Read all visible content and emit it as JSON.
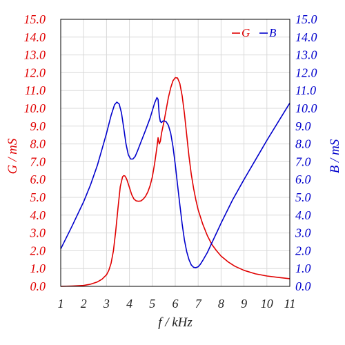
{
  "chart_data": {
    "type": "line",
    "xlabel": "f / kHz",
    "ylabel_left": "G / mS",
    "ylabel_right": "B / mS",
    "xlim": [
      1,
      11
    ],
    "ylim": [
      0,
      15
    ],
    "grid": true,
    "legend_position": "top-right",
    "x_ticks": [
      "1",
      "2",
      "3",
      "4",
      "5",
      "6",
      "7",
      "8",
      "9",
      "10",
      "11"
    ],
    "y_ticks": [
      "0.0",
      "1.0",
      "2.0",
      "3.0",
      "4.0",
      "5.0",
      "6.0",
      "7.0",
      "8.0",
      "9.0",
      "10.0",
      "11.0",
      "12.0",
      "13.0",
      "14.0",
      "15.0"
    ],
    "colors": {
      "G": "#e00000",
      "B": "#0000cc",
      "grid": "#d9d9d9",
      "frame": "#000000"
    },
    "series": [
      {
        "name": "G",
        "axis": "left",
        "x": [
          1,
          1.5,
          2,
          2.3,
          2.6,
          2.8,
          3,
          3.1,
          3.2,
          3.3,
          3.4,
          3.5,
          3.6,
          3.7,
          3.75,
          3.8,
          3.85,
          3.9,
          4.0,
          4.1,
          4.2,
          4.3,
          4.4,
          4.5,
          4.6,
          4.7,
          4.8,
          4.9,
          5.0,
          5.1,
          5.2,
          5.25,
          5.3,
          5.35,
          5.4,
          5.5,
          5.6,
          5.7,
          5.8,
          5.9,
          6.0,
          6.1,
          6.2,
          6.3,
          6.4,
          6.5,
          6.6,
          6.7,
          6.8,
          6.9,
          7.0,
          7.2,
          7.4,
          7.6,
          7.8,
          8.0,
          8.3,
          8.6,
          9.0,
          9.5,
          10.0,
          10.5,
          11.0
        ],
        "y": [
          0.0,
          0.02,
          0.05,
          0.12,
          0.25,
          0.4,
          0.65,
          0.9,
          1.3,
          2.0,
          3.1,
          4.4,
          5.6,
          6.15,
          6.22,
          6.2,
          6.1,
          5.95,
          5.55,
          5.15,
          4.9,
          4.8,
          4.78,
          4.8,
          4.9,
          5.05,
          5.3,
          5.65,
          6.15,
          6.9,
          7.8,
          8.35,
          8.0,
          8.15,
          8.6,
          9.2,
          9.9,
          10.6,
          11.15,
          11.55,
          11.72,
          11.7,
          11.4,
          10.7,
          9.7,
          8.5,
          7.3,
          6.3,
          5.5,
          4.85,
          4.3,
          3.5,
          2.85,
          2.35,
          2.0,
          1.7,
          1.38,
          1.13,
          0.9,
          0.7,
          0.58,
          0.5,
          0.43
        ]
      },
      {
        "name": "B",
        "axis": "right",
        "x": [
          1,
          1.5,
          2,
          2.3,
          2.6,
          2.8,
          3.0,
          3.2,
          3.35,
          3.45,
          3.55,
          3.65,
          3.75,
          3.85,
          3.95,
          4.05,
          4.15,
          4.25,
          4.35,
          4.5,
          4.7,
          4.9,
          5.1,
          5.2,
          5.25,
          5.3,
          5.35,
          5.4,
          5.45,
          5.5,
          5.6,
          5.7,
          5.8,
          5.9,
          6.0,
          6.1,
          6.2,
          6.3,
          6.4,
          6.5,
          6.6,
          6.7,
          6.8,
          6.9,
          7.0,
          7.1,
          7.2,
          7.4,
          7.6,
          7.8,
          8.0,
          8.5,
          9.0,
          9.5,
          10.0,
          10.5,
          11.0
        ],
        "y": [
          2.1,
          3.4,
          4.75,
          5.7,
          6.8,
          7.7,
          8.6,
          9.6,
          10.2,
          10.35,
          10.25,
          9.75,
          8.9,
          8.0,
          7.4,
          7.15,
          7.15,
          7.3,
          7.6,
          8.1,
          8.75,
          9.45,
          10.3,
          10.6,
          10.5,
          9.6,
          9.25,
          9.2,
          9.28,
          9.3,
          9.25,
          9.05,
          8.6,
          7.85,
          6.85,
          5.7,
          4.6,
          3.5,
          2.6,
          1.95,
          1.5,
          1.2,
          1.07,
          1.05,
          1.1,
          1.25,
          1.45,
          1.9,
          2.45,
          3.0,
          3.55,
          4.85,
          6.0,
          7.1,
          8.2,
          9.25,
          10.3
        ]
      }
    ]
  }
}
